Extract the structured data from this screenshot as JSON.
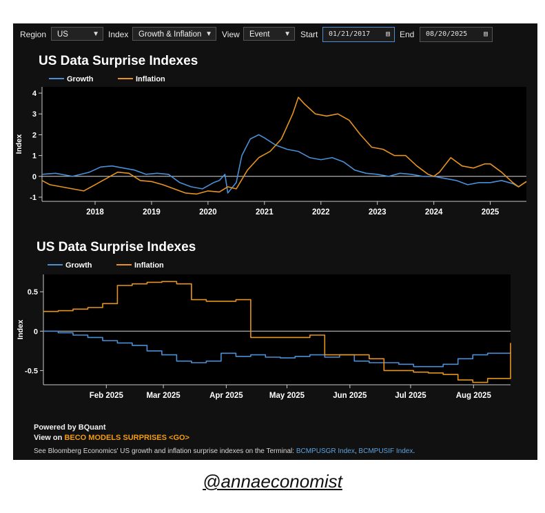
{
  "controls": {
    "region_label": "Region",
    "region_value": "US",
    "index_label": "Index",
    "index_value": "Growth & Inflation",
    "view_label": "View",
    "view_value": "Event",
    "start_label": "Start",
    "start_value": "01/21/2017",
    "end_label": "End",
    "end_value": "08/20/2025"
  },
  "footer": {
    "powered": "Powered by BQuant",
    "view_on": "View on",
    "models_link": "BECO MODELS SURPRISES <GO>",
    "see_text": "See Bloomberg Economics' US growth and inflation surprise indexes on the Terminal:",
    "link1": "BCMPUSGR Index",
    "sep": ",",
    "link2": "BCMPUSIF Index",
    "end": "."
  },
  "credit": "@annaeconomist",
  "colors": {
    "growth": "#4a90d9",
    "inflation": "#e8941f"
  },
  "chart_data": [
    {
      "type": "line",
      "title": "US Data Surprise Indexes",
      "ylabel": "Index",
      "xlim": [
        2017.06,
        2025.64
      ],
      "ylim": [
        -1.2,
        4.3
      ],
      "yticks": [
        -1,
        0,
        1,
        2,
        3,
        4
      ],
      "xticks": [
        2018,
        2019,
        2020,
        2021,
        2022,
        2023,
        2024,
        2025
      ],
      "xtick_labels": [
        "2018",
        "2019",
        "2020",
        "2021",
        "2022",
        "2023",
        "2024",
        "2025"
      ],
      "series": [
        {
          "name": "Growth",
          "x": [
            2017.06,
            2017.3,
            2017.6,
            2017.9,
            2018.1,
            2018.3,
            2018.5,
            2018.7,
            2018.9,
            2019.1,
            2019.3,
            2019.5,
            2019.7,
            2019.9,
            2020.1,
            2020.2,
            2020.3,
            2020.35,
            2020.5,
            2020.6,
            2020.75,
            2020.9,
            2021.0,
            2021.2,
            2021.4,
            2021.6,
            2021.8,
            2022.0,
            2022.2,
            2022.4,
            2022.6,
            2022.8,
            2023.0,
            2023.2,
            2023.4,
            2023.6,
            2023.8,
            2024.0,
            2024.2,
            2024.4,
            2024.6,
            2024.8,
            2025.0,
            2025.2,
            2025.4,
            2025.5,
            2025.64
          ],
          "y": [
            0.1,
            0.15,
            0.0,
            0.2,
            0.45,
            0.5,
            0.4,
            0.3,
            0.1,
            0.15,
            0.1,
            -0.3,
            -0.5,
            -0.6,
            -0.3,
            -0.2,
            0.1,
            -0.8,
            -0.3,
            1.0,
            1.8,
            2.0,
            1.85,
            1.5,
            1.3,
            1.2,
            0.9,
            0.8,
            0.9,
            0.7,
            0.3,
            0.15,
            0.1,
            0.0,
            0.15,
            0.1,
            0.0,
            0.0,
            -0.1,
            -0.2,
            -0.4,
            -0.3,
            -0.3,
            -0.2,
            -0.35,
            -0.5,
            -0.25
          ]
        },
        {
          "name": "Inflation",
          "x": [
            2017.06,
            2017.2,
            2017.4,
            2017.6,
            2017.8,
            2018.0,
            2018.2,
            2018.4,
            2018.6,
            2018.8,
            2019.0,
            2019.2,
            2019.4,
            2019.6,
            2019.8,
            2020.0,
            2020.2,
            2020.35,
            2020.5,
            2020.7,
            2020.9,
            2021.1,
            2021.3,
            2021.5,
            2021.6,
            2021.7,
            2021.9,
            2022.1,
            2022.3,
            2022.5,
            2022.7,
            2022.9,
            2023.1,
            2023.3,
            2023.5,
            2023.7,
            2023.9,
            2024.0,
            2024.1,
            2024.3,
            2024.5,
            2024.7,
            2024.9,
            2025.0,
            2025.2,
            2025.4,
            2025.5,
            2025.64
          ],
          "y": [
            -0.2,
            -0.4,
            -0.5,
            -0.6,
            -0.7,
            -0.4,
            -0.1,
            0.2,
            0.15,
            -0.2,
            -0.25,
            -0.4,
            -0.6,
            -0.8,
            -0.85,
            -0.7,
            -0.75,
            -0.5,
            -0.6,
            0.3,
            0.9,
            1.2,
            1.8,
            3.0,
            3.8,
            3.5,
            3.0,
            2.9,
            3.0,
            2.7,
            2.0,
            1.4,
            1.3,
            1.0,
            1.0,
            0.5,
            0.1,
            0.0,
            0.2,
            0.9,
            0.5,
            0.4,
            0.6,
            0.6,
            0.2,
            -0.3,
            -0.5,
            -0.25
          ]
        }
      ]
    },
    {
      "type": "line",
      "title": "US Data Surprise Indexes",
      "ylabel": "Index",
      "xlim": [
        2025.0,
        2025.631
      ],
      "ylim": [
        -0.68,
        0.72
      ],
      "yticks": [
        -0.5,
        0,
        0.5
      ],
      "ytick_labels": [
        "-0.5",
        "0",
        "0.5"
      ],
      "xticks": [
        2025.085,
        2025.162,
        2025.247,
        2025.329,
        2025.414,
        2025.496,
        2025.581
      ],
      "xtick_labels": [
        "Feb 2025",
        "Mar 2025",
        "Apr 2025",
        "May 2025",
        "Jun 2025",
        "Jul 2025",
        "Aug 2025"
      ],
      "series": [
        {
          "name": "Growth",
          "x": [
            2025.0,
            2025.02,
            2025.04,
            2025.06,
            2025.08,
            2025.1,
            2025.12,
            2025.14,
            2025.16,
            2025.18,
            2025.2,
            2025.22,
            2025.24,
            2025.26,
            2025.28,
            2025.3,
            2025.32,
            2025.34,
            2025.36,
            2025.38,
            2025.4,
            2025.42,
            2025.44,
            2025.46,
            2025.48,
            2025.5,
            2025.52,
            2025.54,
            2025.56,
            2025.58,
            2025.6,
            2025.631
          ],
          "y": [
            0.0,
            -0.02,
            -0.05,
            -0.08,
            -0.12,
            -0.15,
            -0.18,
            -0.25,
            -0.3,
            -0.38,
            -0.4,
            -0.38,
            -0.28,
            -0.32,
            -0.3,
            -0.33,
            -0.34,
            -0.32,
            -0.3,
            -0.33,
            -0.3,
            -0.38,
            -0.4,
            -0.4,
            -0.42,
            -0.45,
            -0.45,
            -0.42,
            -0.35,
            -0.3,
            -0.28,
            -0.27
          ]
        },
        {
          "name": "Inflation",
          "x": [
            2025.0,
            2025.02,
            2025.04,
            2025.06,
            2025.08,
            2025.1,
            2025.12,
            2025.14,
            2025.16,
            2025.18,
            2025.2,
            2025.22,
            2025.24,
            2025.26,
            2025.28,
            2025.3,
            2025.32,
            2025.34,
            2025.36,
            2025.38,
            2025.4,
            2025.42,
            2025.44,
            2025.46,
            2025.48,
            2025.5,
            2025.52,
            2025.54,
            2025.56,
            2025.58,
            2025.6,
            2025.631
          ],
          "y": [
            0.25,
            0.26,
            0.28,
            0.3,
            0.35,
            0.58,
            0.6,
            0.62,
            0.63,
            0.6,
            0.4,
            0.38,
            0.38,
            0.4,
            -0.08,
            -0.08,
            -0.08,
            -0.08,
            -0.05,
            -0.3,
            -0.3,
            -0.3,
            -0.35,
            -0.5,
            -0.5,
            -0.52,
            -0.53,
            -0.55,
            -0.62,
            -0.65,
            -0.6,
            -0.15
          ]
        }
      ]
    }
  ]
}
